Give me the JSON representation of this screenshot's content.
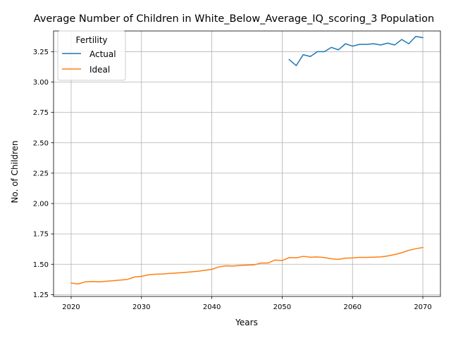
{
  "chart_data": {
    "type": "line",
    "title": "Average Number of Children in White_Below_Average_IQ_scoring_3 Population",
    "xlabel": "Years",
    "ylabel": "No. of Children",
    "xlim": [
      2017.5,
      2072.5
    ],
    "ylim": [
      1.235,
      3.42
    ],
    "x_ticks": [
      2020,
      2030,
      2040,
      2050,
      2060,
      2070
    ],
    "y_ticks": [
      1.25,
      1.5,
      1.75,
      2.0,
      2.25,
      2.5,
      2.75,
      3.0,
      3.25
    ],
    "x_tick_labels": [
      "2020",
      "2030",
      "2040",
      "2050",
      "2060",
      "2070"
    ],
    "y_tick_labels": [
      "1.25",
      "1.50",
      "1.75",
      "2.00",
      "2.25",
      "2.50",
      "2.75",
      "3.00",
      "3.25"
    ],
    "grid": true,
    "legend": {
      "title": "Fertility",
      "placement": "upper-left"
    },
    "series": [
      {
        "name": "Actual",
        "color": "#1f77b4",
        "x": [
          2051,
          2052,
          2053,
          2054,
          2055,
          2056,
          2057,
          2058,
          2059,
          2060,
          2061,
          2062,
          2063,
          2064,
          2065,
          2066,
          2067,
          2068,
          2069,
          2070
        ],
        "values": [
          3.185,
          3.135,
          3.225,
          3.21,
          3.25,
          3.25,
          3.285,
          3.265,
          3.315,
          3.295,
          3.31,
          3.31,
          3.315,
          3.305,
          3.32,
          3.305,
          3.35,
          3.315,
          3.375,
          3.365
        ]
      },
      {
        "name": "Ideal",
        "color": "#ff7f0e",
        "x": [
          2020,
          2021,
          2022,
          2023,
          2024,
          2025,
          2026,
          2027,
          2028,
          2029,
          2030,
          2031,
          2032,
          2033,
          2034,
          2035,
          2036,
          2037,
          2038,
          2039,
          2040,
          2041,
          2042,
          2043,
          2044,
          2045,
          2046,
          2047,
          2048,
          2049,
          2050,
          2051,
          2052,
          2053,
          2054,
          2055,
          2056,
          2057,
          2058,
          2059,
          2060,
          2061,
          2062,
          2063,
          2064,
          2065,
          2066,
          2067,
          2068,
          2069,
          2070
        ],
        "values": [
          1.345,
          1.338,
          1.355,
          1.358,
          1.355,
          1.36,
          1.365,
          1.37,
          1.375,
          1.395,
          1.4,
          1.413,
          1.418,
          1.42,
          1.425,
          1.428,
          1.432,
          1.437,
          1.442,
          1.45,
          1.458,
          1.478,
          1.487,
          1.485,
          1.49,
          1.493,
          1.495,
          1.51,
          1.51,
          1.535,
          1.53,
          1.555,
          1.553,
          1.565,
          1.558,
          1.56,
          1.555,
          1.545,
          1.54,
          1.55,
          1.552,
          1.557,
          1.557,
          1.558,
          1.56,
          1.568,
          1.58,
          1.595,
          1.615,
          1.628,
          1.638
        ]
      }
    ]
  }
}
